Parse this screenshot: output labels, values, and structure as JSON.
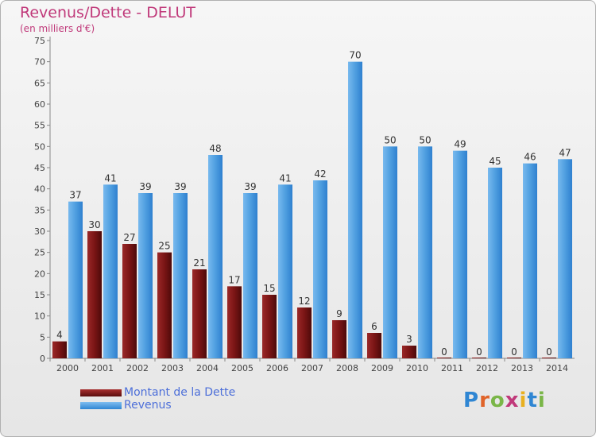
{
  "title": "Revenus/Dette - DELUT",
  "subtitle": "(en milliers d'€)",
  "logo": "Proxiti",
  "colors": {
    "debt": "#7a1515",
    "revenue": "#4f9fe0",
    "title": "#c0397a",
    "legend_text": "#4d6fd9"
  },
  "chart_data": {
    "type": "bar",
    "title": "Revenus/Dette - DELUT",
    "ylabel": "(en milliers d'€)",
    "xlabel": "",
    "categories": [
      "2000",
      "2001",
      "2002",
      "2003",
      "2004",
      "2005",
      "2006",
      "2007",
      "2008",
      "2009",
      "2010",
      "2011",
      "2012",
      "2013",
      "2014"
    ],
    "series": [
      {
        "name": "Montant de la Dette",
        "values": [
          4,
          30,
          27,
          25,
          21,
          17,
          15,
          12,
          9,
          6,
          3,
          0,
          0,
          0,
          0
        ]
      },
      {
        "name": "Revenus",
        "values": [
          37,
          41,
          39,
          39,
          48,
          39,
          41,
          42,
          70,
          50,
          50,
          49,
          45,
          46,
          47
        ]
      }
    ],
    "ylim": [
      0,
      75
    ],
    "yticks": [
      0,
      5,
      10,
      15,
      20,
      25,
      30,
      35,
      40,
      45,
      50,
      55,
      60,
      65,
      70,
      75
    ],
    "grid": false,
    "legend": "bottom-left"
  }
}
